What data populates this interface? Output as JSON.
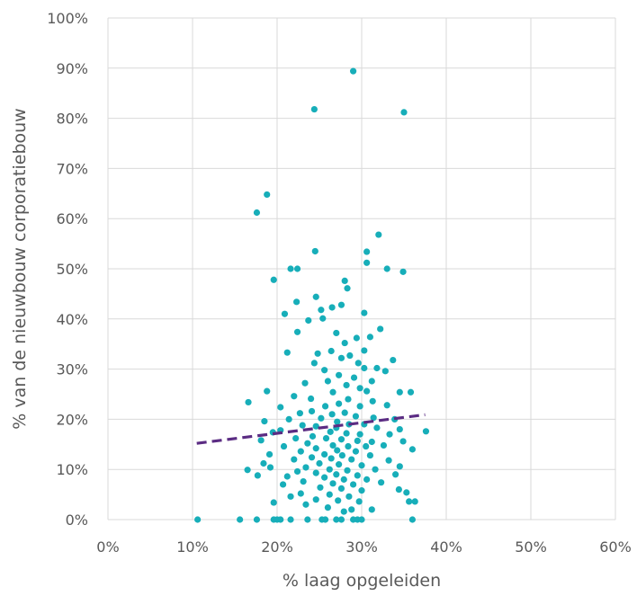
{
  "chart_data": {
    "type": "scatter",
    "title": "",
    "xlabel": "% laag opgeleiden",
    "ylabel": "% van de nieuwbouw corporatiebouw",
    "xlim": [
      0,
      0.6
    ],
    "ylim": [
      0,
      1.0
    ],
    "x_ticks": [
      "0%",
      "10%",
      "20%",
      "30%",
      "40%",
      "50%",
      "60%"
    ],
    "y_ticks": [
      "0%",
      "10%",
      "20%",
      "30%",
      "40%",
      "50%",
      "60%",
      "70%",
      "80%",
      "90%",
      "100%"
    ],
    "grid": true,
    "legend": "none",
    "colors": {
      "points": "#17AEB9",
      "trendline": "#5B2C83",
      "grid": "#D9D9D9",
      "text": "#595959"
    },
    "trendline": {
      "style": "dashed",
      "x": [
        0.105,
        0.375
      ],
      "y": [
        0.152,
        0.209
      ]
    },
    "series": [
      {
        "points": [
          [
            0.29,
            0.894
          ],
          [
            0.244,
            0.818
          ],
          [
            0.35,
            0.812
          ],
          [
            0.188,
            0.648
          ],
          [
            0.176,
            0.612
          ],
          [
            0.32,
            0.568
          ],
          [
            0.245,
            0.535
          ],
          [
            0.306,
            0.534
          ],
          [
            0.306,
            0.512
          ],
          [
            0.216,
            0.5
          ],
          [
            0.224,
            0.5
          ],
          [
            0.33,
            0.5
          ],
          [
            0.349,
            0.494
          ],
          [
            0.196,
            0.478
          ],
          [
            0.28,
            0.476
          ],
          [
            0.283,
            0.461
          ],
          [
            0.246,
            0.444
          ],
          [
            0.223,
            0.434
          ],
          [
            0.265,
            0.423
          ],
          [
            0.252,
            0.418
          ],
          [
            0.276,
            0.428
          ],
          [
            0.303,
            0.412
          ],
          [
            0.209,
            0.41
          ],
          [
            0.254,
            0.401
          ],
          [
            0.237,
            0.397
          ],
          [
            0.27,
            0.372
          ],
          [
            0.224,
            0.374
          ],
          [
            0.31,
            0.364
          ],
          [
            0.322,
            0.38
          ],
          [
            0.294,
            0.362
          ],
          [
            0.28,
            0.352
          ],
          [
            0.212,
            0.333
          ],
          [
            0.248,
            0.331
          ],
          [
            0.264,
            0.336
          ],
          [
            0.286,
            0.327
          ],
          [
            0.303,
            0.337
          ],
          [
            0.276,
            0.322
          ],
          [
            0.337,
            0.318
          ],
          [
            0.296,
            0.312
          ],
          [
            0.244,
            0.312
          ],
          [
            0.256,
            0.298
          ],
          [
            0.303,
            0.302
          ],
          [
            0.318,
            0.302
          ],
          [
            0.328,
            0.296
          ],
          [
            0.273,
            0.288
          ],
          [
            0.291,
            0.283
          ],
          [
            0.312,
            0.276
          ],
          [
            0.26,
            0.276
          ],
          [
            0.233,
            0.272
          ],
          [
            0.282,
            0.268
          ],
          [
            0.298,
            0.262
          ],
          [
            0.306,
            0.256
          ],
          [
            0.188,
            0.256
          ],
          [
            0.345,
            0.254
          ],
          [
            0.358,
            0.254
          ],
          [
            0.266,
            0.254
          ],
          [
            0.22,
            0.246
          ],
          [
            0.24,
            0.241
          ],
          [
            0.284,
            0.24
          ],
          [
            0.313,
            0.236
          ],
          [
            0.166,
            0.234
          ],
          [
            0.204,
            0.224
          ],
          [
            0.257,
            0.226
          ],
          [
            0.273,
            0.231
          ],
          [
            0.298,
            0.226
          ],
          [
            0.33,
            0.228
          ],
          [
            0.241,
            0.216
          ],
          [
            0.227,
            0.212
          ],
          [
            0.265,
            0.21
          ],
          [
            0.28,
            0.213
          ],
          [
            0.293,
            0.206
          ],
          [
            0.314,
            0.203
          ],
          [
            0.339,
            0.2
          ],
          [
            0.252,
            0.202
          ],
          [
            0.214,
            0.2
          ],
          [
            0.185,
            0.196
          ],
          [
            0.271,
            0.195
          ],
          [
            0.285,
            0.19
          ],
          [
            0.303,
            0.19
          ],
          [
            0.23,
            0.188
          ],
          [
            0.246,
            0.186
          ],
          [
            0.27,
            0.183
          ],
          [
            0.318,
            0.183
          ],
          [
            0.345,
            0.18
          ],
          [
            0.204,
            0.178
          ],
          [
            0.195,
            0.174
          ],
          [
            0.263,
            0.175
          ],
          [
            0.282,
            0.172
          ],
          [
            0.298,
            0.17
          ],
          [
            0.333,
            0.17
          ],
          [
            0.376,
            0.176
          ],
          [
            0.242,
            0.166
          ],
          [
            0.222,
            0.162
          ],
          [
            0.258,
            0.162
          ],
          [
            0.276,
            0.16
          ],
          [
            0.295,
            0.157
          ],
          [
            0.312,
            0.155
          ],
          [
            0.349,
            0.156
          ],
          [
            0.181,
            0.158
          ],
          [
            0.236,
            0.152
          ],
          [
            0.266,
            0.148
          ],
          [
            0.284,
            0.146
          ],
          [
            0.305,
            0.146
          ],
          [
            0.326,
            0.148
          ],
          [
            0.208,
            0.146
          ],
          [
            0.246,
            0.142
          ],
          [
            0.271,
            0.138
          ],
          [
            0.293,
            0.136
          ],
          [
            0.36,
            0.14
          ],
          [
            0.228,
            0.136
          ],
          [
            0.256,
            0.13
          ],
          [
            0.277,
            0.128
          ],
          [
            0.31,
            0.128
          ],
          [
            0.191,
            0.13
          ],
          [
            0.241,
            0.124
          ],
          [
            0.264,
            0.122
          ],
          [
            0.288,
            0.12
          ],
          [
            0.332,
            0.118
          ],
          [
            0.22,
            0.12
          ],
          [
            0.184,
            0.112
          ],
          [
            0.25,
            0.112
          ],
          [
            0.273,
            0.11
          ],
          [
            0.3,
            0.108
          ],
          [
            0.345,
            0.106
          ],
          [
            0.192,
            0.104
          ],
          [
            0.234,
            0.104
          ],
          [
            0.262,
            0.1
          ],
          [
            0.283,
            0.098
          ],
          [
            0.316,
            0.1
          ],
          [
            0.165,
            0.099
          ],
          [
            0.224,
            0.096
          ],
          [
            0.246,
            0.093
          ],
          [
            0.27,
            0.09
          ],
          [
            0.295,
            0.088
          ],
          [
            0.34,
            0.09
          ],
          [
            0.177,
            0.088
          ],
          [
            0.212,
            0.086
          ],
          [
            0.256,
            0.084
          ],
          [
            0.279,
            0.08
          ],
          [
            0.306,
            0.08
          ],
          [
            0.231,
            0.076
          ],
          [
            0.266,
            0.072
          ],
          [
            0.29,
            0.07
          ],
          [
            0.323,
            0.074
          ],
          [
            0.207,
            0.07
          ],
          [
            0.251,
            0.064
          ],
          [
            0.276,
            0.062
          ],
          [
            0.3,
            0.058
          ],
          [
            0.344,
            0.06
          ],
          [
            0.228,
            0.052
          ],
          [
            0.262,
            0.05
          ],
          [
            0.285,
            0.046
          ],
          [
            0.353,
            0.054
          ],
          [
            0.216,
            0.046
          ],
          [
            0.246,
            0.04
          ],
          [
            0.272,
            0.038
          ],
          [
            0.297,
            0.036
          ],
          [
            0.356,
            0.036
          ],
          [
            0.363,
            0.036
          ],
          [
            0.196,
            0.034
          ],
          [
            0.234,
            0.03
          ],
          [
            0.26,
            0.024
          ],
          [
            0.288,
            0.02
          ],
          [
            0.312,
            0.02
          ],
          [
            0.279,
            0.016
          ],
          [
            0.106,
            0.0
          ],
          [
            0.156,
            0.0
          ],
          [
            0.176,
            0.0
          ],
          [
            0.196,
            0.0
          ],
          [
            0.2,
            0.0
          ],
          [
            0.204,
            0.0
          ],
          [
            0.216,
            0.0
          ],
          [
            0.236,
            0.0
          ],
          [
            0.253,
            0.0
          ],
          [
            0.257,
            0.0
          ],
          [
            0.27,
            0.0
          ],
          [
            0.276,
            0.0
          ],
          [
            0.29,
            0.0
          ],
          [
            0.295,
            0.0
          ],
          [
            0.3,
            0.0
          ],
          [
            0.36,
            0.0
          ]
        ]
      }
    ]
  }
}
